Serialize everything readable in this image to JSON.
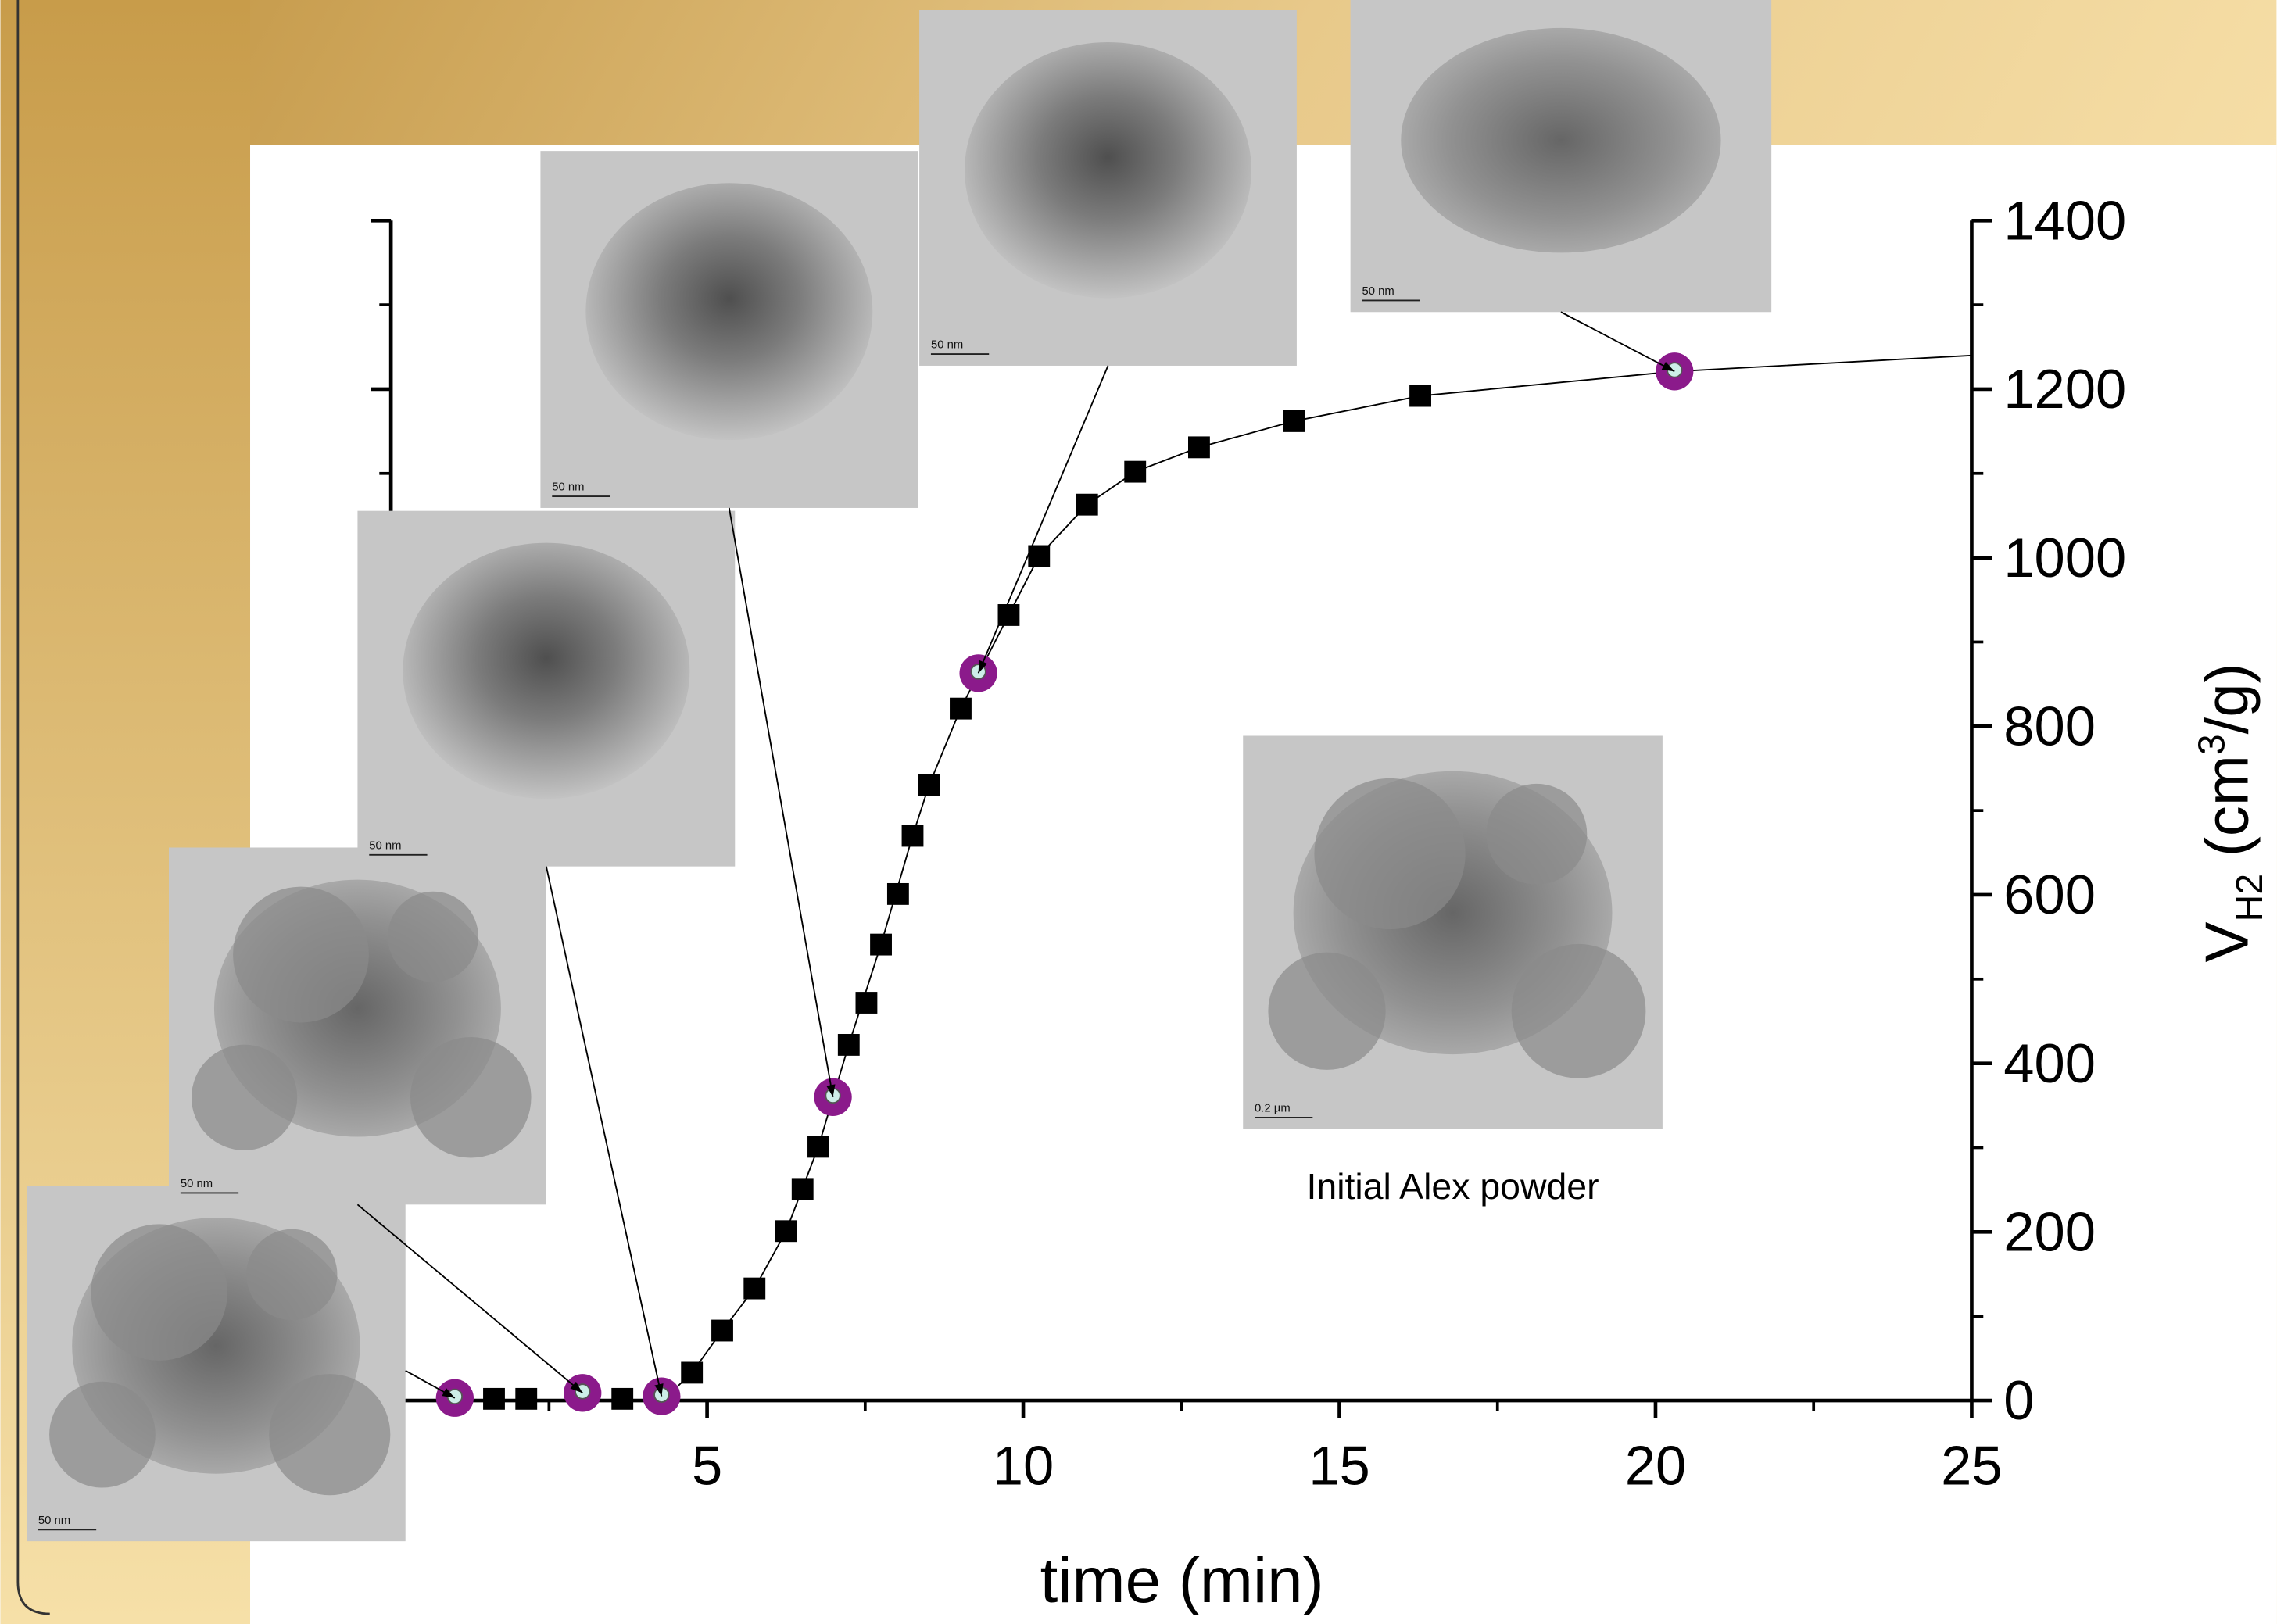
{
  "chart_data": {
    "type": "scatter",
    "x_label": "time (min)",
    "y_label": {
      "main": "V",
      "sub": "H2",
      "open": " (cm",
      "sup": "3",
      "close": "/g)"
    },
    "xlim": [
      0,
      25
    ],
    "xticks": [
      5,
      10,
      15,
      20,
      25
    ],
    "x_minor_ticks": [
      2.5,
      7.5,
      12.5,
      17.5,
      22.5
    ],
    "ylim": [
      0,
      1400
    ],
    "yticks": [
      0,
      200,
      400,
      600,
      800,
      1000,
      1200,
      1400
    ],
    "y_minor_ticks": [
      100,
      300,
      500,
      700,
      900,
      1100,
      1300
    ],
    "series": [
      {
        "marker": "line",
        "color": "#000000",
        "x": [
          0,
          4.3,
          4.76,
          5.24,
          5.75,
          6.25,
          6.76,
          7.24,
          7.75,
          8.25,
          8.51,
          9.01,
          9.77,
          10.25,
          11.01,
          11.77,
          12.78,
          14.28,
          16.28,
          20.3,
          25
        ],
        "values": [
          0,
          0,
          33,
          83,
          133,
          201,
          301,
          422,
          541,
          670,
          730,
          821,
          932,
          1002,
          1063,
          1102,
          1131,
          1162,
          1192,
          1221,
          1240
        ]
      },
      {
        "marker": "square",
        "color": "#000000",
        "x": [
          1.63,
          2.14,
          3.66,
          4.76,
          5.24,
          5.75,
          6.25,
          6.51,
          6.76,
          7.24,
          7.52,
          7.75,
          8.02,
          8.25,
          8.51,
          9.01,
          9.77,
          10.25,
          11.01,
          11.77,
          12.78,
          14.28,
          16.28
        ],
        "values": [
          2,
          2,
          2,
          33,
          83,
          133,
          201,
          251,
          301,
          422,
          472,
          541,
          601,
          670,
          730,
          821,
          932,
          1002,
          1063,
          1102,
          1131,
          1162,
          1192
        ]
      },
      {
        "marker": "circle",
        "color": "#8b1a8b",
        "x": [
          1.01,
          3.03,
          4.28,
          6.99,
          9.29,
          20.3
        ],
        "values": [
          3,
          9,
          5,
          360,
          863,
          1221
        ]
      }
    ],
    "images": [
      {
        "scale_label": "50 nm",
        "points_to": 0
      },
      {
        "scale_label": "50 nm",
        "points_to": 1
      },
      {
        "scale_label": "50 nm",
        "points_to": 2
      },
      {
        "scale_label": "50 nm",
        "points_to": 3
      },
      {
        "scale_label": "50 nm",
        "points_to": 4
      },
      {
        "scale_label": "50 nm",
        "points_to": 5
      },
      {
        "scale_label": "0.2 µm",
        "caption": "Initial Alex powder"
      }
    ]
  }
}
